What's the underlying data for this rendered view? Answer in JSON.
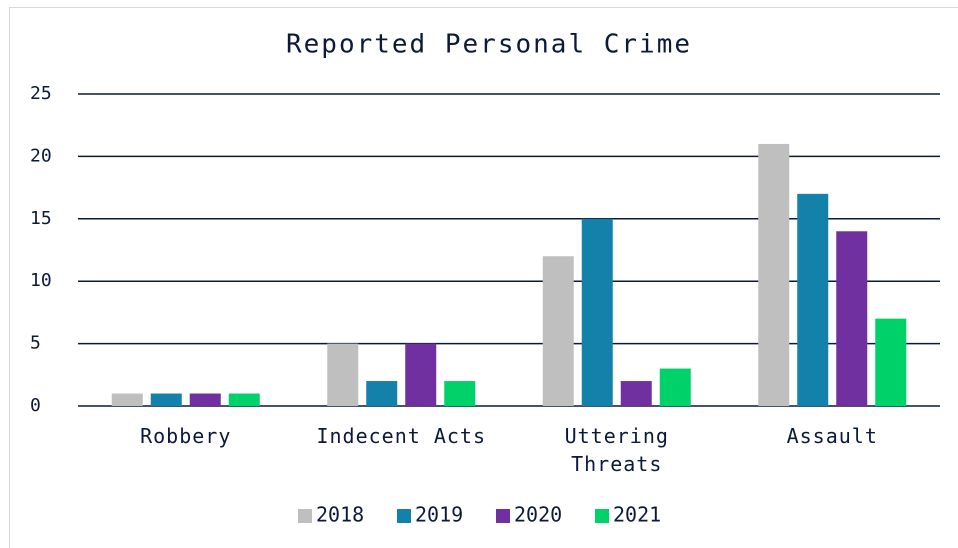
{
  "chart_data": {
    "type": "bar",
    "title": "Reported Personal Crime",
    "categories": [
      "Robbery",
      "Indecent Acts",
      "Uttering Threats",
      "Assault"
    ],
    "series": [
      {
        "name": "2018",
        "color": "#bfbfbf",
        "values": [
          1,
          5,
          12,
          21
        ]
      },
      {
        "name": "2019",
        "color": "#1481ab",
        "values": [
          1,
          2,
          15,
          17
        ]
      },
      {
        "name": "2020",
        "color": "#7030a0",
        "values": [
          1,
          5,
          2,
          14
        ]
      },
      {
        "name": "2021",
        "color": "#00d26a",
        "values": [
          1,
          2,
          3,
          7
        ]
      }
    ],
    "ylim": [
      0,
      25
    ],
    "yticks": [
      0,
      5,
      10,
      15,
      20,
      25
    ],
    "grid": true,
    "legend": "bottom"
  }
}
